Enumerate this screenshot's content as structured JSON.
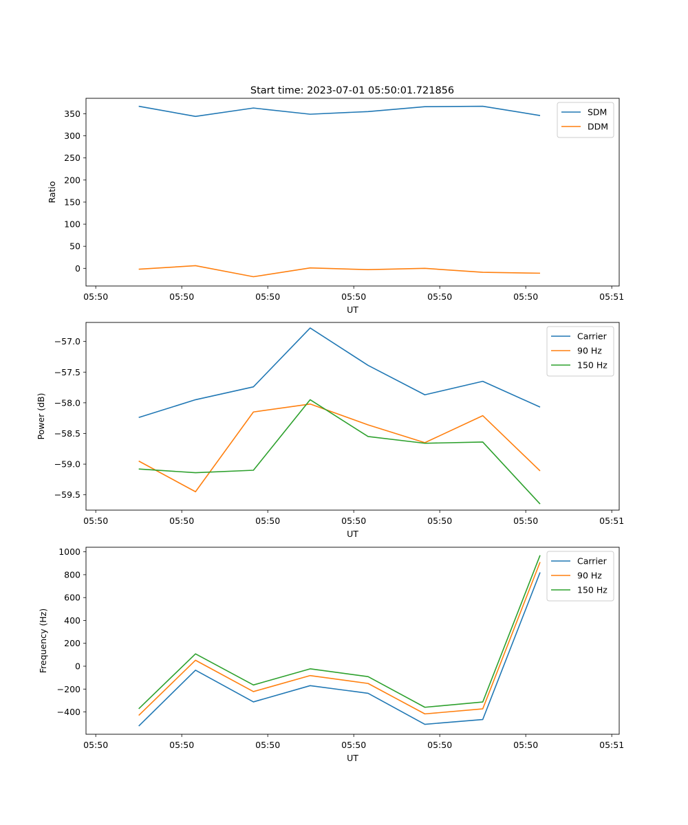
{
  "figure_title": "Start time: 2023-07-01 05:50:01.721856",
  "colors": {
    "blue": "#1f77b4",
    "orange": "#ff7f0e",
    "green": "#2ca02c"
  },
  "chart_data": [
    {
      "type": "line",
      "title": "Start time: 2023-07-01 05:50:01.721856",
      "xlabel": "UT",
      "ylabel": "Ratio",
      "x_tick_labels": [
        "05:50",
        "05:50",
        "05:50",
        "05:50",
        "05:50",
        "05:50",
        "05:51"
      ],
      "xlim": [
        -0.5,
        8.8
      ],
      "x_ticks": [
        -0.33,
        1.17,
        2.67,
        4.17,
        5.67,
        7.17,
        8.67
      ],
      "x": [
        0.42,
        1.41,
        2.42,
        3.41,
        4.42,
        5.41,
        6.42,
        7.42
      ],
      "ylim": [
        -40,
        385
      ],
      "y_ticks": [
        0,
        50,
        100,
        150,
        200,
        250,
        300,
        350
      ],
      "y_tick_labels": [
        "0",
        "50",
        "100",
        "150",
        "200",
        "250",
        "300",
        "350"
      ],
      "legend_position": "top-right",
      "series": [
        {
          "name": "SDM",
          "color": "#1f77b4",
          "values": [
            367,
            344,
            363,
            349,
            355,
            366,
            367,
            346
          ]
        },
        {
          "name": "DDM",
          "color": "#ff7f0e",
          "values": [
            -2,
            6,
            -19,
            1,
            -3,
            0,
            -9,
            -11
          ]
        }
      ]
    },
    {
      "type": "line",
      "xlabel": "UT",
      "ylabel": "Power (dB)",
      "x_tick_labels": [
        "05:50",
        "05:50",
        "05:50",
        "05:50",
        "05:50",
        "05:50",
        "05:51"
      ],
      "xlim": [
        -0.5,
        8.8
      ],
      "x_ticks": [
        -0.33,
        1.17,
        2.67,
        4.17,
        5.67,
        7.17,
        8.67
      ],
      "x": [
        0.42,
        1.41,
        2.42,
        3.41,
        4.42,
        5.41,
        6.42,
        7.42
      ],
      "ylim": [
        -59.75,
        -56.69
      ],
      "y_ticks": [
        -59.5,
        -59.0,
        -58.5,
        -58.0,
        -57.5,
        -57.0
      ],
      "y_tick_labels": [
        "−59.5",
        "−59.0",
        "−58.5",
        "−58.0",
        "−57.5",
        "−57.0"
      ],
      "legend_position": "top-right",
      "series": [
        {
          "name": "Carrier",
          "color": "#1f77b4",
          "values": [
            -58.24,
            -57.95,
            -57.74,
            -56.78,
            -57.39,
            -57.87,
            -57.65,
            -58.07
          ]
        },
        {
          "name": "90 Hz",
          "color": "#ff7f0e",
          "values": [
            -58.95,
            -59.45,
            -58.15,
            -58.02,
            -58.36,
            -58.65,
            -58.21,
            -59.11
          ]
        },
        {
          "name": "150 Hz",
          "color": "#2ca02c",
          "values": [
            -59.08,
            -59.14,
            -59.1,
            -57.95,
            -58.55,
            -58.66,
            -58.64,
            -59.65
          ]
        }
      ]
    },
    {
      "type": "line",
      "xlabel": "UT",
      "ylabel": "Frequency (Hz)",
      "x_tick_labels": [
        "05:50",
        "05:50",
        "05:50",
        "05:50",
        "05:50",
        "05:50",
        "05:51"
      ],
      "xlim": [
        -0.5,
        8.8
      ],
      "x_ticks": [
        -0.33,
        1.17,
        2.67,
        4.17,
        5.67,
        7.17,
        8.67
      ],
      "x": [
        0.42,
        1.41,
        2.42,
        3.41,
        4.42,
        5.41,
        6.42,
        7.42
      ],
      "ylim": [
        -595,
        1040
      ],
      "y_ticks": [
        -400,
        -200,
        0,
        200,
        400,
        600,
        800,
        1000
      ],
      "y_tick_labels": [
        "−400",
        "−200",
        "0",
        "200",
        "400",
        "600",
        "800",
        "1000"
      ],
      "legend_position": "top-right",
      "series": [
        {
          "name": "Carrier",
          "color": "#1f77b4",
          "values": [
            -523,
            -35,
            -312,
            -170,
            -237,
            -508,
            -466,
            820
          ]
        },
        {
          "name": "90 Hz",
          "color": "#ff7f0e",
          "values": [
            -430,
            52,
            -222,
            -82,
            -151,
            -417,
            -373,
            910
          ]
        },
        {
          "name": "150 Hz",
          "color": "#2ca02c",
          "values": [
            -372,
            108,
            -164,
            -23,
            -91,
            -359,
            -313,
            970
          ]
        }
      ]
    }
  ]
}
